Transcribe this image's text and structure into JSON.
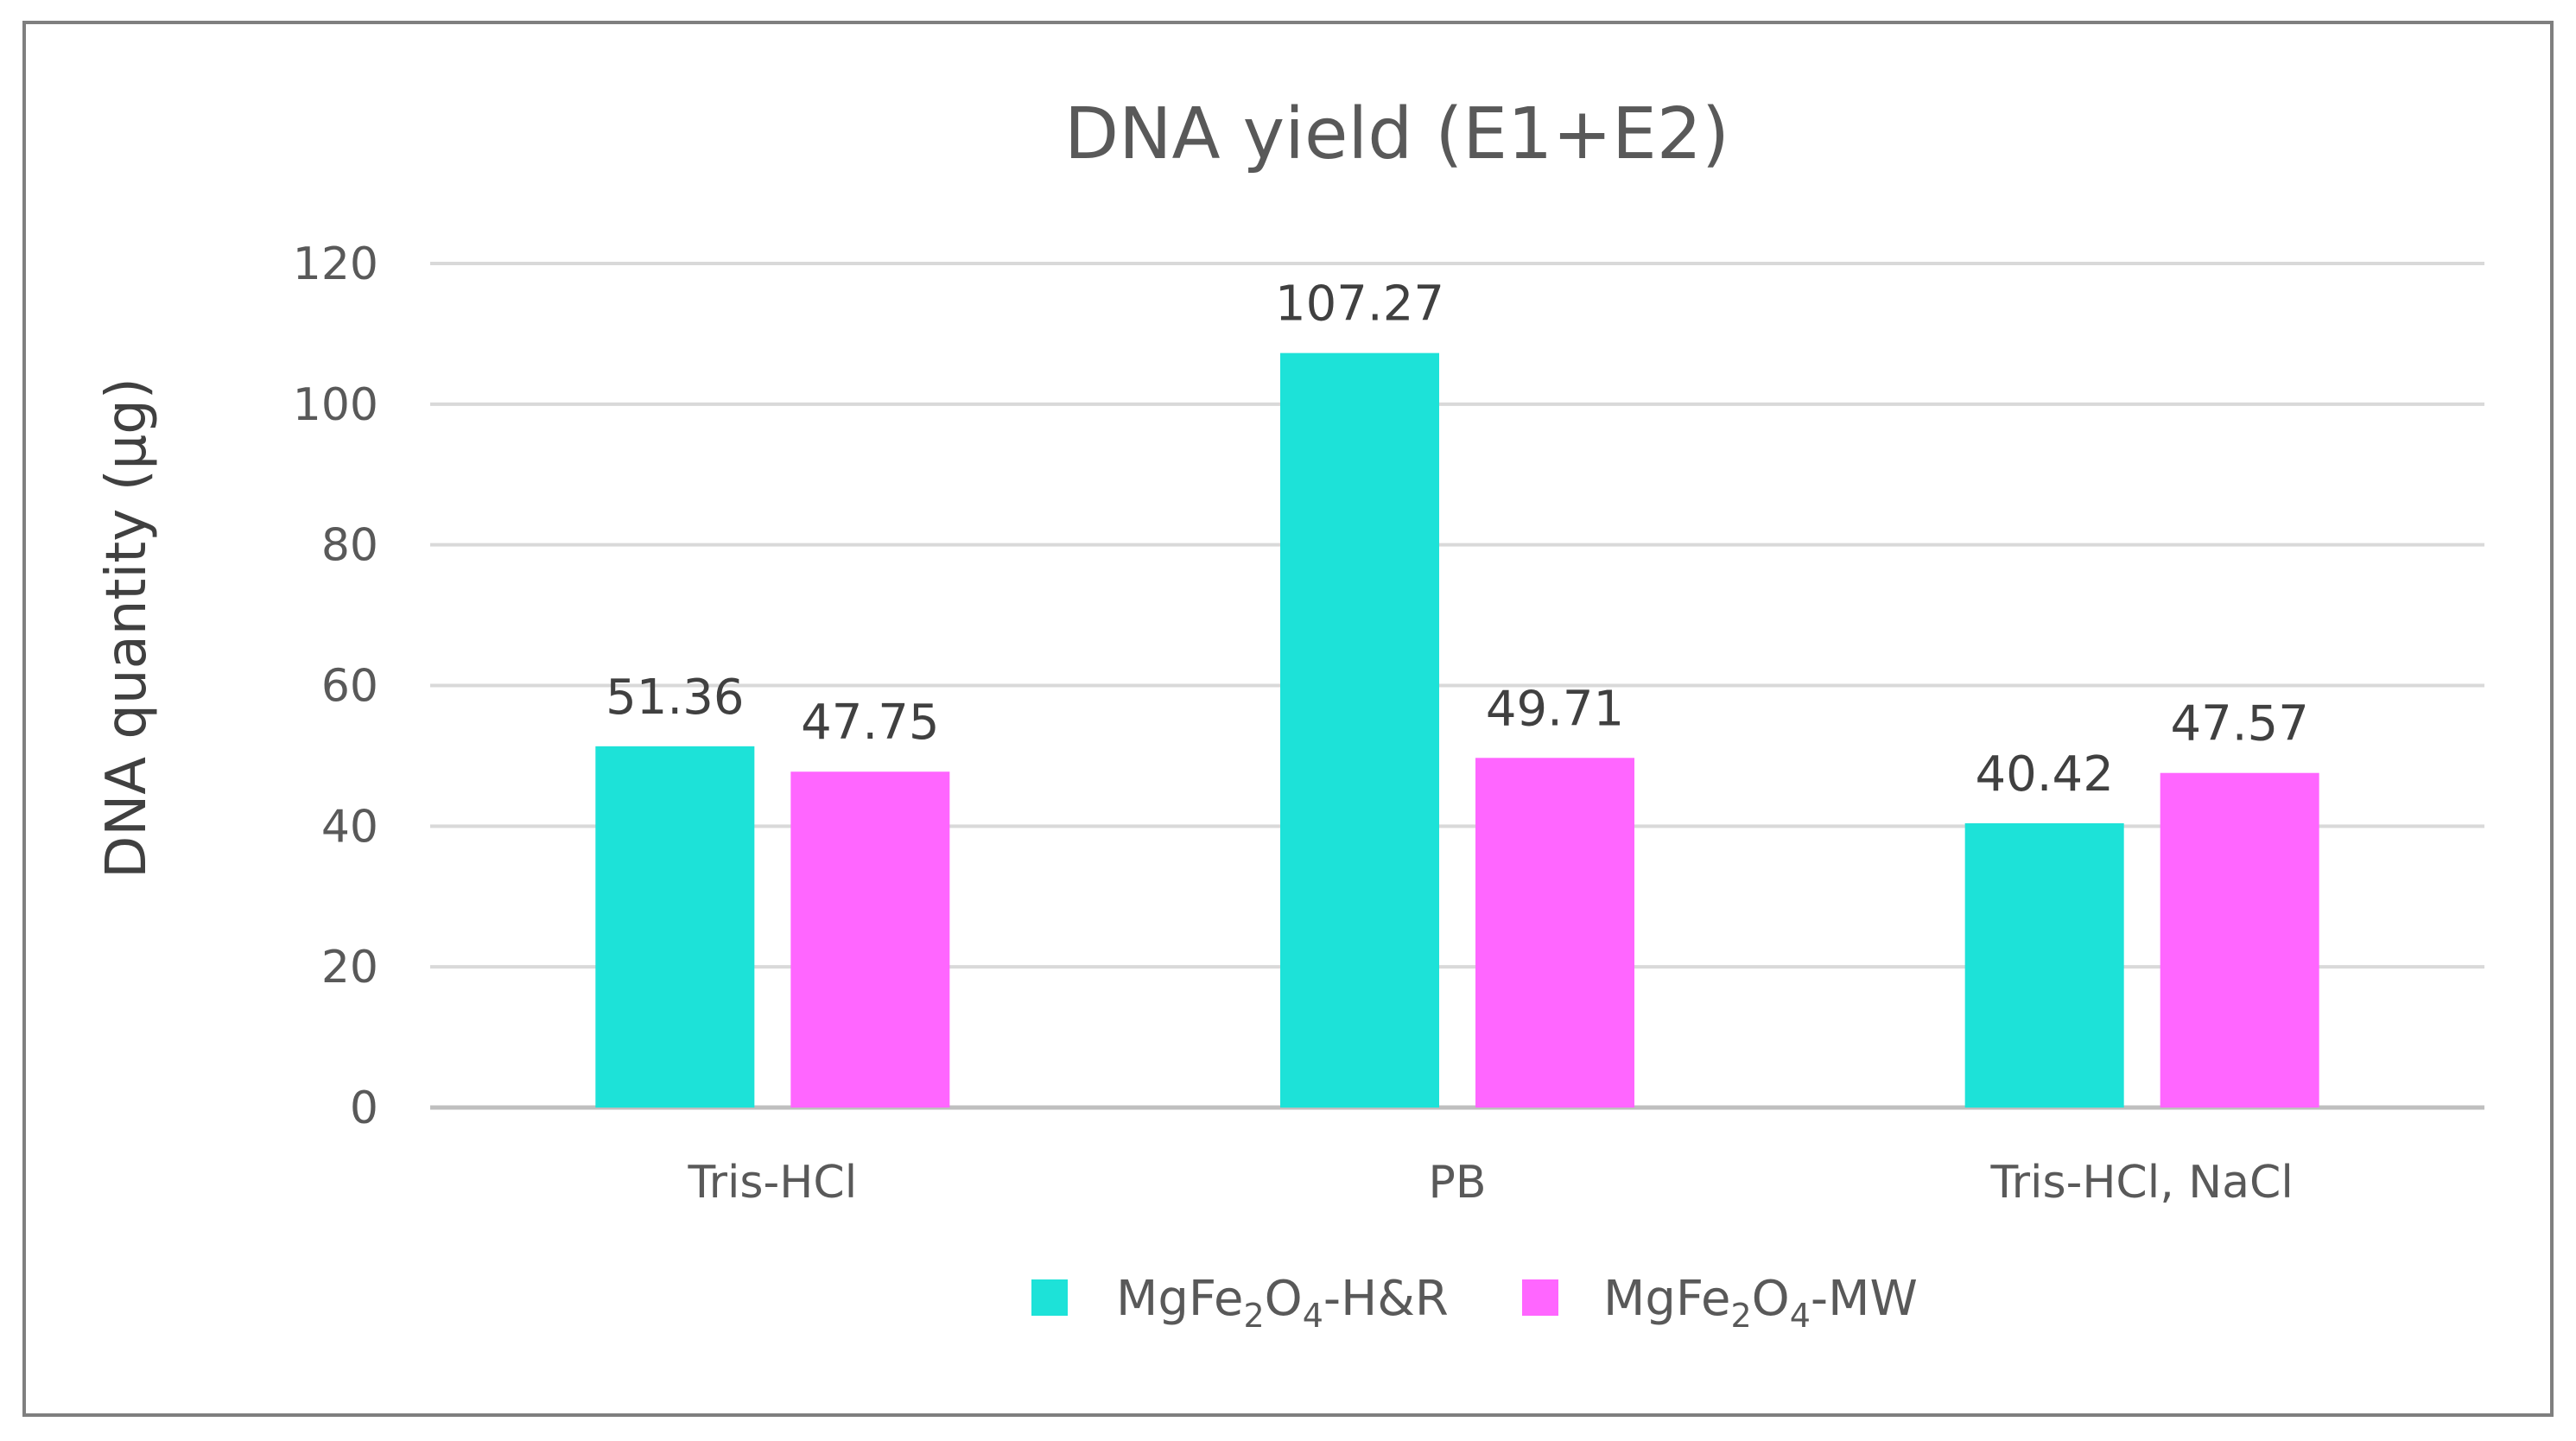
{
  "chart_data": {
    "type": "bar",
    "title": "DNA yield (E1+E2)",
    "xlabel": "",
    "ylabel": "DNA quantity (µg)",
    "ylim": [
      0,
      120
    ],
    "yticks": [
      0,
      20,
      40,
      60,
      80,
      100,
      120
    ],
    "grid": true,
    "legend_position": "bottom",
    "categories": [
      "Tris-HCl",
      "PB",
      "Tris-HCl, NaCl"
    ],
    "series": [
      {
        "name": "MgFe2O4-H&R",
        "legend_parts": {
          "a": "MgFe",
          "sub1": "2",
          "b": "O",
          "sub2": "4",
          "c": "-H&R"
        },
        "color": "#1DE2D8",
        "values": [
          51.36,
          107.27,
          40.42
        ],
        "labels": [
          "51.36",
          "107.27",
          "40.42"
        ]
      },
      {
        "name": "MgFe2O4-MW",
        "legend_parts": {
          "a": "MgFe",
          "sub1": "2",
          "b": "O",
          "sub2": "4",
          "c": "-MW"
        },
        "color": "#FF66FF",
        "values": [
          47.75,
          49.71,
          47.57
        ],
        "labels": [
          "47.75",
          "49.71",
          "47.57"
        ]
      }
    ],
    "colors": {
      "frame": "#7f7f7f",
      "grid": "#d9d9d9",
      "axis": "#bfbfbf"
    }
  }
}
